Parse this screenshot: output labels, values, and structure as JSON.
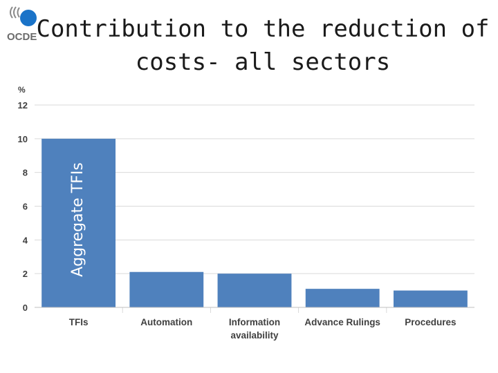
{
  "header": {
    "logo_text": "OCDE",
    "title_line1": "Contribution to the reduction of",
    "title_line2": "costs- all sectors"
  },
  "colors": {
    "bar": "#4f81bd",
    "grid": "#d9d9d9",
    "logo_blue": "#1a73c8"
  },
  "chart_data": {
    "type": "bar",
    "title": "Contribution to the reduction of costs- all sectors",
    "ylabel": "%",
    "xlabel": "",
    "ylim": [
      0,
      12
    ],
    "yticks": [
      0,
      2,
      4,
      6,
      8,
      10,
      12
    ],
    "grid": true,
    "categories": [
      [
        "TFIs"
      ],
      [
        "Automation"
      ],
      [
        "Information",
        "availability"
      ],
      [
        "Advance Rulings"
      ],
      [
        "Procedures"
      ]
    ],
    "values": [
      10,
      2.1,
      2.0,
      1.1,
      1.0
    ],
    "bar_annotation": "Aggregate TFIs"
  }
}
